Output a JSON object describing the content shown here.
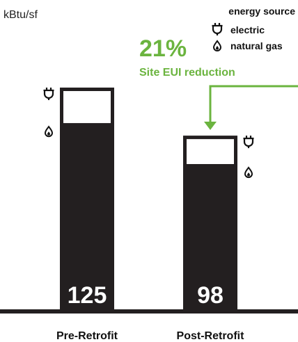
{
  "chart_data": {
    "type": "bar",
    "stacked": true,
    "ylabel": "kBtu/sf",
    "categories": [
      "Pre-Retrofit",
      "Post-Retrofit"
    ],
    "totals": [
      125,
      98
    ],
    "series": [
      {
        "name": "electric",
        "values": [
          20,
          16
        ],
        "color": "#ffffff"
      },
      {
        "name": "natural gas",
        "values": [
          105,
          82
        ],
        "color": "#231f20"
      }
    ],
    "legend": {
      "title": "energy source",
      "placement": "top-right",
      "items": [
        {
          "label": "electric",
          "icon": "plug-icon"
        },
        {
          "label": "natural gas",
          "icon": "flame-icon"
        }
      ]
    },
    "annotation": {
      "percent": "21%",
      "text": "Site EUI reduction",
      "color": "#6bb43f"
    },
    "grid": false
  }
}
